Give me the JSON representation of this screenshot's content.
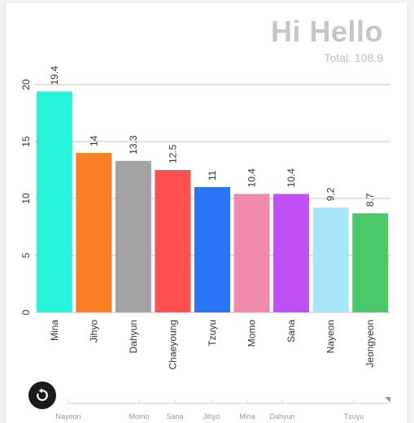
{
  "chart_title": "Hi Hello",
  "chart_subtitle": "Total: 108.9",
  "reset_icon": "refresh-icon",
  "colors": {
    "grid": "#d6b8c4",
    "axis": "#999999"
  },
  "chart_data": {
    "type": "bar",
    "title": "Hi Hello",
    "subtitle": "Total: 108.9",
    "categories": [
      "Mina",
      "Jihyo",
      "Dahyun",
      "Chaeyoung",
      "Tzuyu",
      "Momo",
      "Sana",
      "Nayeon",
      "Jeongyeon"
    ],
    "values": [
      19.4,
      14,
      13.3,
      12.5,
      11,
      10.4,
      10.4,
      9.2,
      8.7
    ],
    "value_labels": [
      "19.4",
      "14",
      "13.3",
      "12.5",
      "11",
      "10.4",
      "10.4",
      "9.2",
      "8.7"
    ],
    "colors": [
      "#27f2dc",
      "#fa7f25",
      "#a4a2a4",
      "#fe5050",
      "#2a74f6",
      "#f18aad",
      "#c050f3",
      "#a8e7fb",
      "#4cc96a"
    ],
    "ylim": [
      0,
      20
    ],
    "yticks": [
      0,
      5,
      10,
      15,
      20
    ],
    "ytick_labels": [
      "0",
      "5",
      "10",
      "15",
      "20"
    ],
    "grid": true,
    "legend": "none",
    "navigator_labels": [
      "Nayeon",
      "Momo",
      "Sana",
      "Jihyo",
      "Mina",
      "Dahyun",
      "Tzuyu"
    ]
  }
}
